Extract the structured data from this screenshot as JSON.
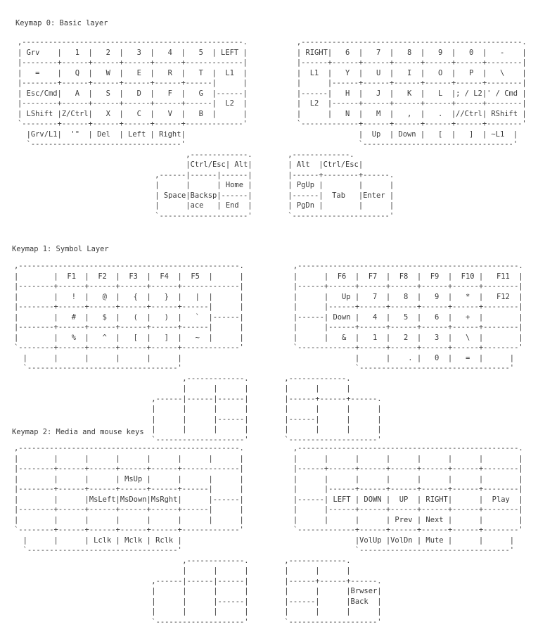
{
  "layers": [
    {
      "title": "Keymap 0: Basic layer",
      "left": [
        ",--------------------------------------------------.",
        "| Grv    |   1  |   2  |   3  |   4  |   5  | LEFT |",
        "|--------+------+------+------+------+-------------|",
        "|   =    |   Q  |   W  |   E  |   R  |   T  |  L1  |",
        "|--------+------+------+------+------+------|      |",
        "| Esc/Cmd|   A  |   S  |   D  |   F  |   G  |------|",
        "|--------+------+------+------+------+------|  L2  |",
        "| LShift |Z/Ctrl|   X  |   C  |   V  |   B  |      |",
        "`--------+------+------+------+------+-------------'",
        "  |Grv/L1|  '\"  | Del  | Left | Right|",
        "  `----------------------------------'"
      ],
      "right": [
        ",--------------------------------------------------.",
        "| RIGHT|   6  |   7  |   8  |   9  |   0  |   -    |",
        "|------+------+------+------+------+------+--------|",
        "|  L1  |   Y  |   U  |   I  |   O  |   P  |   \\    |",
        "|      |------+------+------+------+------+--------|",
        "|------|   H  |   J  |   K  |   L  |; / L2|' / Cmd |",
        "|  L2  |------+------+------+------+------+--------|",
        "|      |   N  |   M  |   ,  |   .  |//Ctrl| RShift |",
        "`-------------+------+------+------+------+--------'",
        "              |  Up  | Down |   [  |   ]  | ~L1  |",
        "              `----------------------------------'"
      ],
      "left_thumb": [
        "       ,-------------.",
        "       |Ctrl/Esc| Alt|",
        ",------|------|------|",
        "|      |      | Home |",
        "| Space|Backsp|------|",
        "|      |ace   | End  |",
        "`--------------------'"
      ],
      "right_thumb": [
        ",-------------.",
        "| Alt  |Ctrl/Esc|",
        "|------+--------+------.",
        "| PgUp |        |      |",
        "|------|  Tab   |Enter |",
        "| PgDn |        |      |",
        "`----------------------'"
      ]
    },
    {
      "title": "Keymap 1: Symbol Layer",
      "left": [
        ",--------------------------------------------------.",
        "|        |  F1  |  F2  |  F3  |  F4  |  F5  |      |",
        "|--------+------+------+------+------+-------------|",
        "|        |   !  |   @  |   {  |   }  |   |  |      |",
        "|--------+------+------+------+------+------|      |",
        "|        |   #  |   $  |   (  |   )  |   `  |------|",
        "|--------+------+------+------+------+------|      |",
        "|        |   %  |   ^  |   [  |   ]  |   ~  |      |",
        "`--------+------+------+------+------+-------------'",
        "  |      |      |      |      |      |",
        "  `----------------------------------'"
      ],
      "right": [
        ",--------------------------------------------------.",
        "|      |  F6  |  F7  |  F8  |  F9  |  F10 |   F11  |",
        "|------+------+------+------+------+------+--------|",
        "|      |   Up |   7  |   8  |   9  |   *  |   F12  |",
        "|      |------+------+------+------+------+--------|",
        "|------| Down |   4  |   5  |   6  |   +  |        |",
        "|      |------+------+------+------+------+--------|",
        "|      |   &  |   1  |   2  |   3  |   \\  |        |",
        "`-------------+------+------+------+------+--------'",
        "              |      |    . |   0  |   =  |      |",
        "              `----------------------------------'"
      ],
      "left_thumb": [
        "       ,-------------.",
        "       |      |      |",
        ",------|------|------|",
        "|      |      |      |",
        "|      |      |------|",
        "|      |      |      |",
        "`--------------------'"
      ],
      "right_thumb": [
        ",-------------.",
        "|      |      |",
        "|------+------+------.",
        "|      |      |      |",
        "|------|      |      |",
        "|      |      |      |",
        "`--------------------'"
      ]
    },
    {
      "title": "Keymap 2: Media and mouse keys",
      "left": [
        ",--------------------------------------------------.",
        "|        |      |      |      |      |      |      |",
        "|--------+------+------+------+------+-------------|",
        "|        |      |      | MsUp |      |      |      |",
        "|--------+------+------+------+------+------|      |",
        "|        |      |MsLeft|MsDown|MsRght|      |------|",
        "|--------+------+------+------+------+------|      |",
        "|        |      |      |      |      |      |      |",
        "`--------+------+------+------+------+-------------'",
        "  |      |      | Lclk | Mclk | Rclk |",
        "  `----------------------------------'"
      ],
      "right": [
        ",--------------------------------------------------.",
        "|      |      |      |      |      |      |        |",
        "|------+------+------+------+------+------+--------|",
        "|      |      |      |      |      |      |        |",
        "|      |------+------+------+------+------+--------|",
        "|------| LEFT | DOWN |  UP  | RIGHT|      |  Play  |",
        "|      |------+------+------+------+------+--------|",
        "|      |      |      | Prev | Next |      |        |",
        "`-------------+------+------+------+------+--------'",
        "              |VolUp |VolDn | Mute |      |      |",
        "              `----------------------------------'"
      ],
      "left_thumb": [
        "       ,-------------.",
        "       |      |      |",
        ",------|------|------|",
        "|      |      |      |",
        "|      |      |------|",
        "|      |      |      |",
        "`--------------------'"
      ],
      "right_thumb": [
        ",-------------.",
        "|      |      |",
        "|------+------+------.",
        "|      |      |Brwser|",
        "|------|      |Back  |",
        "|      |      |      |",
        "`--------------------'"
      ]
    }
  ]
}
